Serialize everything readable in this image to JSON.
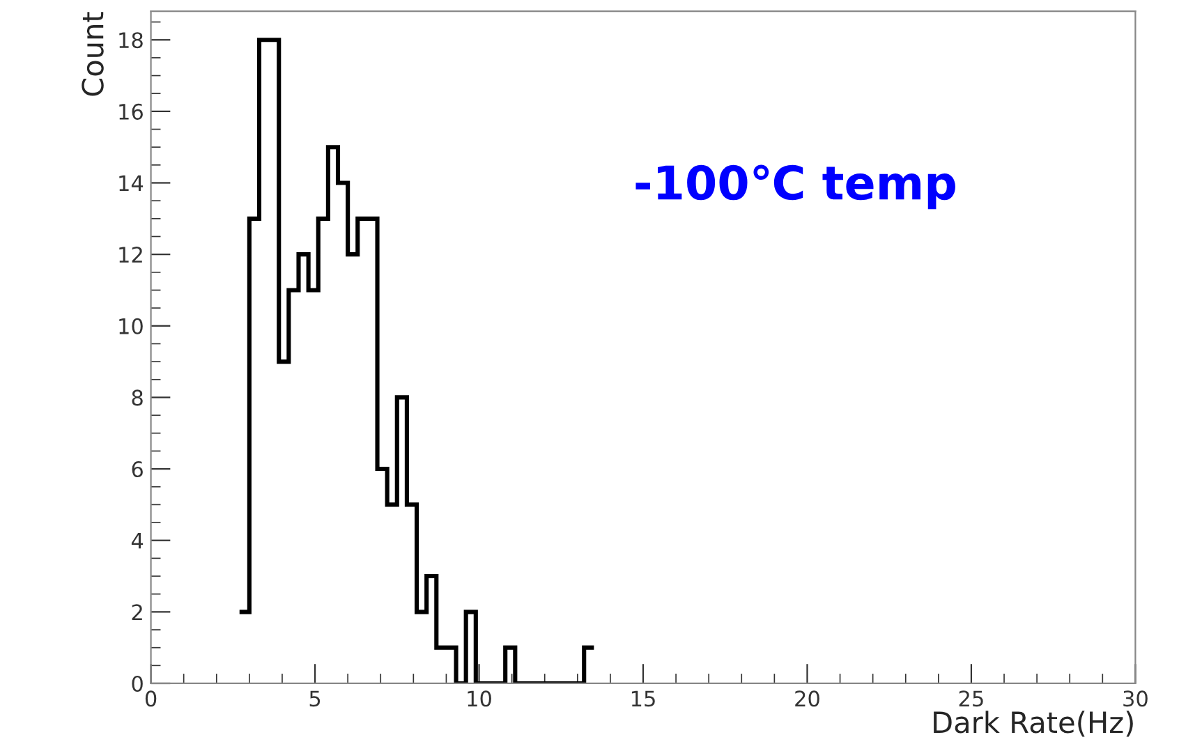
{
  "chart_data": {
    "type": "histogram",
    "xlabel": "Dark Rate(Hz)",
    "ylabel": "Count",
    "bins": [
      2.7,
      3.0,
      3.3,
      3.6,
      3.9,
      4.2,
      4.5,
      4.8,
      5.1,
      5.4,
      5.7,
      6.0,
      6.3,
      6.6,
      6.9,
      7.2,
      7.5,
      7.8,
      8.1,
      8.4,
      8.7,
      9.0,
      9.3,
      9.6,
      9.9,
      10.2,
      10.5,
      10.8,
      11.1,
      11.4,
      11.7,
      12.0,
      12.3,
      12.6,
      12.9,
      13.2,
      13.5
    ],
    "values": [
      2,
      13,
      18,
      18,
      9,
      11,
      12,
      11,
      13,
      15,
      14,
      12,
      13,
      13,
      6,
      5,
      8,
      5,
      2,
      3,
      1,
      1,
      0,
      2,
      0,
      0,
      0,
      1,
      0,
      0,
      0,
      0,
      0,
      0,
      0,
      1
    ],
    "color": "#000000",
    "xlim": [
      0,
      30
    ],
    "xticks": [
      0,
      5,
      10,
      15,
      20,
      25,
      30
    ],
    "ylim": [
      0,
      18.8
    ],
    "yticks": [
      0,
      2,
      4,
      6,
      8,
      10,
      12,
      14,
      16,
      18
    ],
    "grid": false,
    "annotations": [
      "-100℃ temp"
    ]
  }
}
